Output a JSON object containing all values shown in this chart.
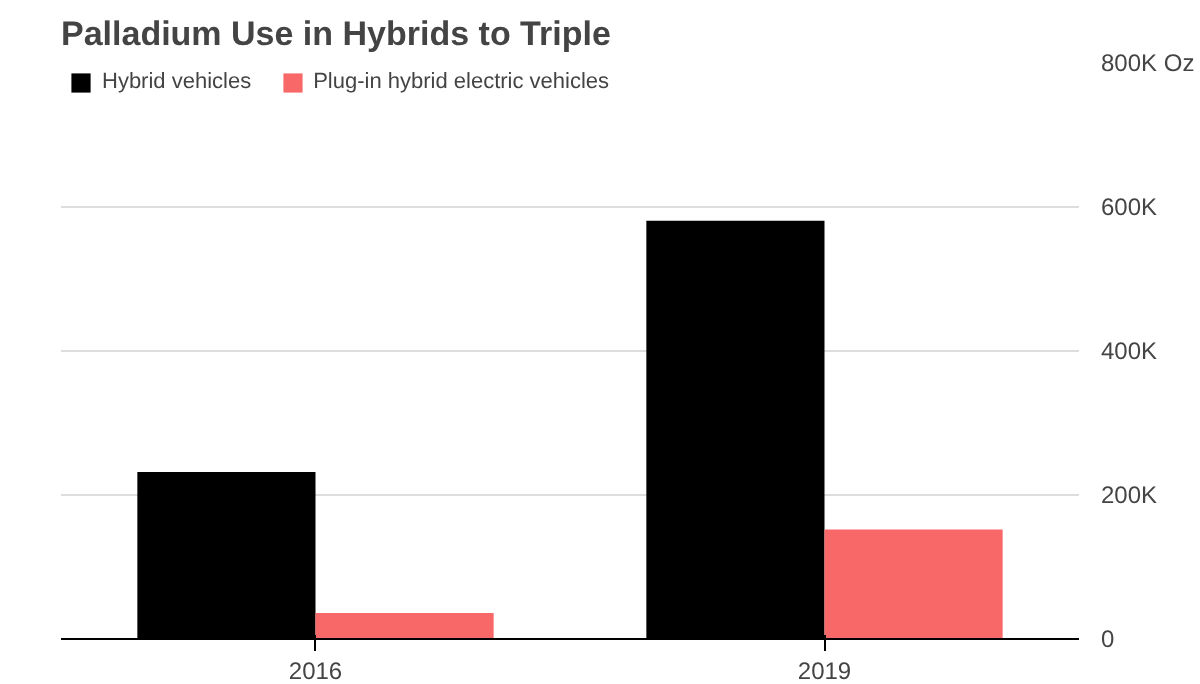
{
  "chart_data": {
    "type": "bar",
    "title": "Palladium Use in Hybrids to Triple",
    "categories": [
      "2016",
      "2019"
    ],
    "series": [
      {
        "name": "Hybrid vehicles",
        "color": "#000000",
        "values": [
          232000,
          581000
        ]
      },
      {
        "name": "Plug-in hybrid electric vehicles",
        "color": "#f86868",
        "values": [
          36000,
          152000
        ]
      }
    ],
    "ylim": [
      0,
      800000
    ],
    "yticks": [
      0,
      {
        "value": 200000,
        "label": "200K"
      },
      {
        "value": 400000,
        "label": "400K"
      },
      {
        "value": 600000,
        "label": "600K"
      },
      {
        "value": 800000,
        "label": "800K Oz"
      }
    ],
    "grid": "y",
    "legend": "top left"
  }
}
